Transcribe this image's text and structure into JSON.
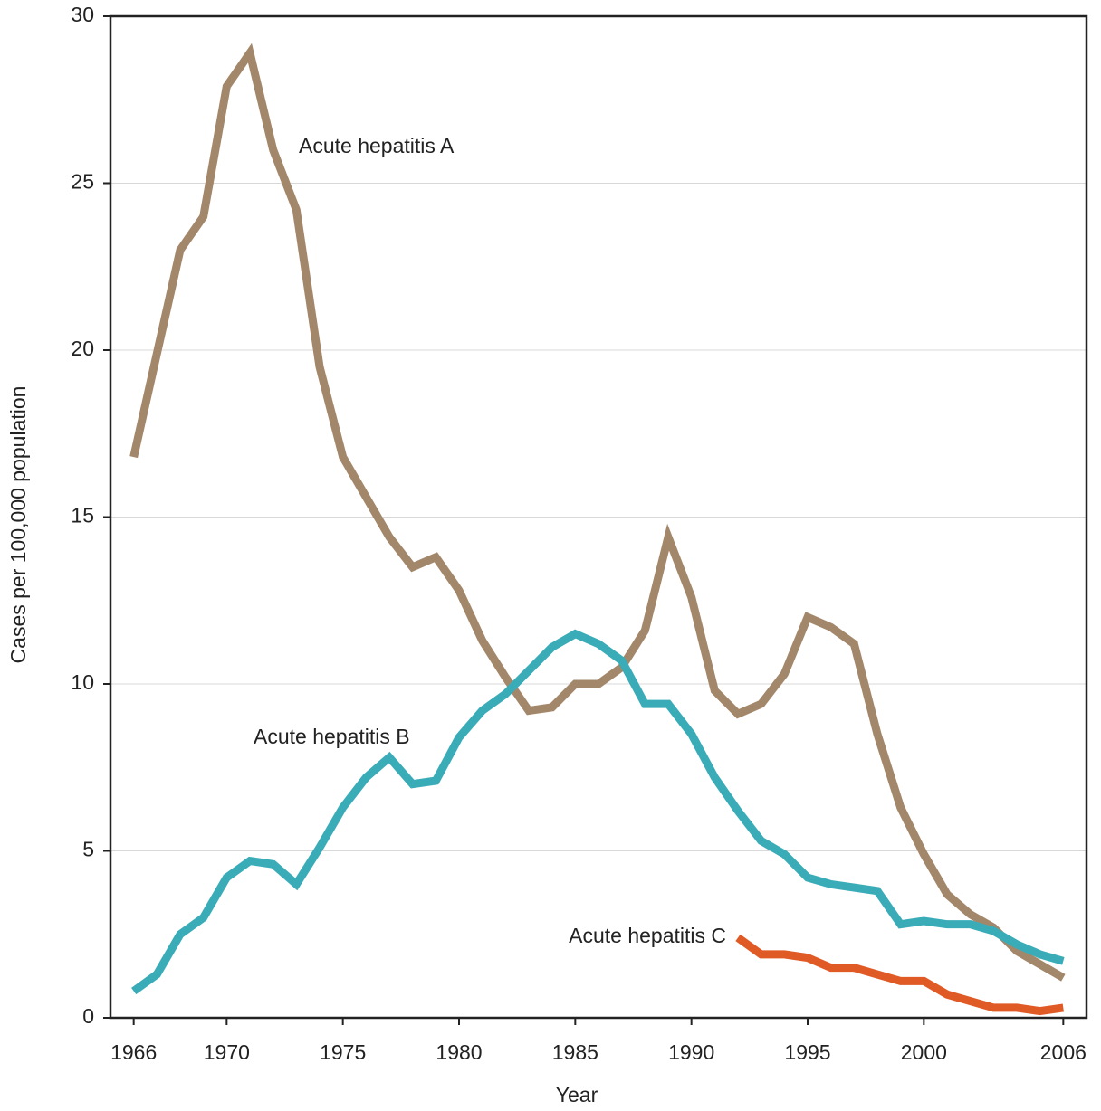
{
  "chart_data": {
    "type": "line",
    "xlabel": "Year",
    "ylabel": "Cases per 100,000 population",
    "x": [
      1966,
      1967,
      1968,
      1969,
      1970,
      1971,
      1972,
      1973,
      1974,
      1975,
      1976,
      1977,
      1978,
      1979,
      1980,
      1981,
      1982,
      1983,
      1984,
      1985,
      1986,
      1987,
      1988,
      1989,
      1990,
      1991,
      1992,
      1993,
      1994,
      1995,
      1996,
      1997,
      1998,
      1999,
      2000,
      2001,
      2002,
      2003,
      2004,
      2005,
      2006
    ],
    "series": [
      {
        "name": "Acute hepatitis A",
        "color": "#a3876a",
        "values": [
          16.8,
          19.9,
          23.0,
          24.0,
          27.9,
          28.9,
          26.0,
          24.2,
          19.5,
          16.8,
          15.6,
          14.4,
          13.5,
          13.8,
          12.8,
          11.3,
          10.2,
          9.2,
          9.3,
          10.0,
          10.0,
          10.5,
          11.6,
          14.4,
          12.6,
          9.8,
          9.1,
          9.4,
          10.3,
          12.0,
          11.7,
          11.2,
          8.5,
          6.3,
          4.9,
          3.7,
          3.1,
          2.7,
          2.0,
          1.6,
          1.2
        ]
      },
      {
        "name": "Acute hepatitis B",
        "color": "#3aacb8",
        "values": [
          0.8,
          1.3,
          2.5,
          3.0,
          4.2,
          4.7,
          4.6,
          4.0,
          5.1,
          6.3,
          7.2,
          7.8,
          7.0,
          7.1,
          8.4,
          9.2,
          9.7,
          10.4,
          11.1,
          11.5,
          11.2,
          10.7,
          9.4,
          9.4,
          8.5,
          7.2,
          6.2,
          5.3,
          4.9,
          4.2,
          4.0,
          3.9,
          3.8,
          2.8,
          2.9,
          2.8,
          2.8,
          2.6,
          2.2,
          1.9,
          1.7
        ]
      },
      {
        "name": "Acute hepatitis C",
        "color": "#e05a25",
        "values": [
          null,
          null,
          null,
          null,
          null,
          null,
          null,
          null,
          null,
          null,
          null,
          null,
          null,
          null,
          null,
          null,
          null,
          null,
          null,
          null,
          null,
          null,
          null,
          null,
          null,
          null,
          2.4,
          1.9,
          1.9,
          1.8,
          1.5,
          1.5,
          1.3,
          1.1,
          1.1,
          0.7,
          0.5,
          0.3,
          0.3,
          0.2,
          0.3
        ]
      }
    ],
    "xlim": [
      1965,
      2007
    ],
    "xticks": [
      1966,
      1970,
      1975,
      1980,
      1985,
      1990,
      1995,
      2000,
      2006
    ],
    "ylim": [
      0,
      30
    ],
    "yticks": [
      0,
      5,
      10,
      15,
      20,
      25,
      30
    ],
    "grid": true
  }
}
